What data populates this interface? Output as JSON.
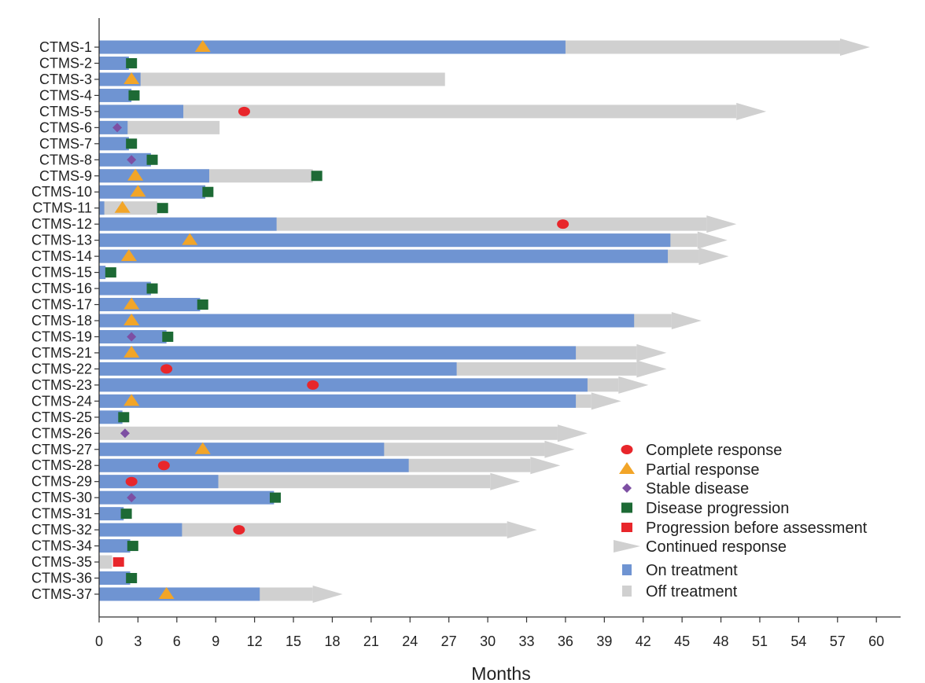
{
  "chart_data": {
    "type": "swimmer",
    "xlabel": "Months",
    "xlim": [
      0,
      61
    ],
    "xticks": [
      0,
      3,
      6,
      9,
      12,
      15,
      18,
      21,
      24,
      27,
      30,
      33,
      36,
      39,
      42,
      45,
      48,
      51,
      54,
      57,
      60
    ],
    "colors": {
      "on": "#6f94d2",
      "off": "#d0d0d0",
      "cr": "#e8262b",
      "pr": "#f2a528",
      "sd": "#7d4fa3",
      "pd": "#1d6a35",
      "pba": "#e8262b",
      "axis": "#333333"
    },
    "legend": [
      {
        "key": "cr",
        "label": "Complete response"
      },
      {
        "key": "pr",
        "label": "Partial response"
      },
      {
        "key": "sd",
        "label": "Stable disease"
      },
      {
        "key": "pd",
        "label": "Disease progression"
      },
      {
        "key": "pba",
        "label": "Progression before assessment"
      },
      {
        "key": "arrow",
        "label": "Continued response"
      },
      {
        "key": "on",
        "label": "On treatment"
      },
      {
        "key": "off",
        "label": "Off treatment"
      }
    ],
    "patients": [
      {
        "id": "CTMS-1",
        "on": 36,
        "off": 59.5,
        "arrow": true,
        "marks": [
          {
            "t": "pr",
            "x": 8
          }
        ]
      },
      {
        "id": "CTMS-2",
        "on": 2.3,
        "off": 0,
        "arrow": false,
        "marks": [
          {
            "t": "pd",
            "x": 2.5
          }
        ]
      },
      {
        "id": "CTMS-3",
        "on": 3.2,
        "off": 26.7,
        "arrow": false,
        "marks": [
          {
            "t": "pr",
            "x": 2.5
          }
        ]
      },
      {
        "id": "CTMS-4",
        "on": 2.5,
        "off": 0,
        "arrow": false,
        "marks": [
          {
            "t": "pd",
            "x": 2.7
          }
        ]
      },
      {
        "id": "CTMS-5",
        "on": 6.5,
        "off": 51.5,
        "arrow": true,
        "marks": [
          {
            "t": "cr",
            "x": 11.2
          }
        ]
      },
      {
        "id": "CTMS-6",
        "on": 2.2,
        "off": 9.3,
        "arrow": false,
        "marks": [
          {
            "t": "sd",
            "x": 1.4
          }
        ]
      },
      {
        "id": "CTMS-7",
        "on": 2.3,
        "off": 0,
        "arrow": false,
        "marks": [
          {
            "t": "pd",
            "x": 2.5
          }
        ]
      },
      {
        "id": "CTMS-8",
        "on": 4,
        "off": 0,
        "arrow": false,
        "marks": [
          {
            "t": "sd",
            "x": 2.5
          },
          {
            "t": "pd",
            "x": 4.1
          }
        ]
      },
      {
        "id": "CTMS-9",
        "on": 8.5,
        "off": 16.5,
        "arrow": false,
        "marks": [
          {
            "t": "pr",
            "x": 2.8
          },
          {
            "t": "pd",
            "x": 16.8
          }
        ]
      },
      {
        "id": "CTMS-10",
        "on": 8.2,
        "off": 0,
        "arrow": false,
        "marks": [
          {
            "t": "pr",
            "x": 3
          },
          {
            "t": "pd",
            "x": 8.4
          }
        ]
      },
      {
        "id": "CTMS-11",
        "on": 0.4,
        "off": 4.5,
        "arrow": false,
        "marks": [
          {
            "t": "pr",
            "x": 1.8
          },
          {
            "t": "pd",
            "x": 4.9
          }
        ]
      },
      {
        "id": "CTMS-12",
        "on": 13.7,
        "off": 49.2,
        "arrow": true,
        "marks": [
          {
            "t": "cr",
            "x": 35.8
          }
        ]
      },
      {
        "id": "CTMS-13",
        "on": 44.1,
        "off": 48.5,
        "arrow": true,
        "marks": [
          {
            "t": "pr",
            "x": 7
          }
        ]
      },
      {
        "id": "CTMS-14",
        "on": 43.9,
        "off": 48.6,
        "arrow": true,
        "marks": [
          {
            "t": "pr",
            "x": 2.3
          }
        ]
      },
      {
        "id": "CTMS-15",
        "on": 0.5,
        "off": 0,
        "arrow": false,
        "marks": [
          {
            "t": "pd",
            "x": 0.9
          }
        ]
      },
      {
        "id": "CTMS-16",
        "on": 4,
        "off": 0,
        "arrow": false,
        "marks": [
          {
            "t": "pd",
            "x": 4.1
          }
        ]
      },
      {
        "id": "CTMS-17",
        "on": 7.8,
        "off": 0,
        "arrow": false,
        "marks": [
          {
            "t": "pr",
            "x": 2.5
          },
          {
            "t": "pd",
            "x": 8
          }
        ]
      },
      {
        "id": "CTMS-18",
        "on": 41.3,
        "off": 46.5,
        "arrow": true,
        "marks": [
          {
            "t": "pr",
            "x": 2.5
          }
        ]
      },
      {
        "id": "CTMS-19",
        "on": 5.2,
        "off": 0,
        "arrow": false,
        "marks": [
          {
            "t": "sd",
            "x": 2.5
          },
          {
            "t": "pd",
            "x": 5.3
          }
        ]
      },
      {
        "id": "CTMS-21",
        "on": 36.8,
        "off": 43.8,
        "arrow": true,
        "marks": [
          {
            "t": "pr",
            "x": 2.5
          }
        ]
      },
      {
        "id": "CTMS-22",
        "on": 27.6,
        "off": 43.8,
        "arrow": true,
        "marks": [
          {
            "t": "cr",
            "x": 5.2
          }
        ]
      },
      {
        "id": "CTMS-23",
        "on": 37.7,
        "off": 42.4,
        "arrow": true,
        "marks": [
          {
            "t": "cr",
            "x": 16.5
          }
        ]
      },
      {
        "id": "CTMS-24",
        "on": 36.8,
        "off": 40.3,
        "arrow": true,
        "marks": [
          {
            "t": "pr",
            "x": 2.5
          }
        ]
      },
      {
        "id": "CTMS-25",
        "on": 1.8,
        "off": 0,
        "arrow": false,
        "marks": [
          {
            "t": "pd",
            "x": 1.9
          }
        ]
      },
      {
        "id": "CTMS-26",
        "on": 0,
        "off": 37.7,
        "arrow": true,
        "marks": [
          {
            "t": "sd",
            "x": 2
          }
        ]
      },
      {
        "id": "CTMS-27",
        "on": 22,
        "off": 36.7,
        "arrow": true,
        "marks": [
          {
            "t": "pr",
            "x": 8
          }
        ]
      },
      {
        "id": "CTMS-28",
        "on": 23.9,
        "off": 35.6,
        "arrow": true,
        "marks": [
          {
            "t": "cr",
            "x": 5
          }
        ]
      },
      {
        "id": "CTMS-29",
        "on": 9.2,
        "off": 32.5,
        "arrow": true,
        "marks": [
          {
            "t": "cr",
            "x": 2.5
          }
        ]
      },
      {
        "id": "CTMS-30",
        "on": 13.5,
        "off": 0,
        "arrow": false,
        "marks": [
          {
            "t": "sd",
            "x": 2.5
          },
          {
            "t": "pd",
            "x": 13.6
          }
        ]
      },
      {
        "id": "CTMS-31",
        "on": 1.9,
        "off": 0,
        "arrow": false,
        "marks": [
          {
            "t": "pd",
            "x": 2.1
          }
        ]
      },
      {
        "id": "CTMS-32",
        "on": 6.4,
        "off": 33.8,
        "arrow": true,
        "marks": [
          {
            "t": "cr",
            "x": 10.8
          }
        ]
      },
      {
        "id": "CTMS-34",
        "on": 2.4,
        "off": 0,
        "arrow": false,
        "marks": [
          {
            "t": "pd",
            "x": 2.6
          }
        ]
      },
      {
        "id": "CTMS-35",
        "on": 0,
        "off": 1,
        "arrow": false,
        "marks": [
          {
            "t": "pba",
            "x": 1.5
          }
        ]
      },
      {
        "id": "CTMS-36",
        "on": 2.4,
        "off": 0,
        "arrow": false,
        "marks": [
          {
            "t": "pd",
            "x": 2.5
          }
        ]
      },
      {
        "id": "CTMS-37",
        "on": 12.4,
        "off": 18.8,
        "arrow": true,
        "marks": [
          {
            "t": "pr",
            "x": 5.2
          }
        ]
      }
    ]
  }
}
